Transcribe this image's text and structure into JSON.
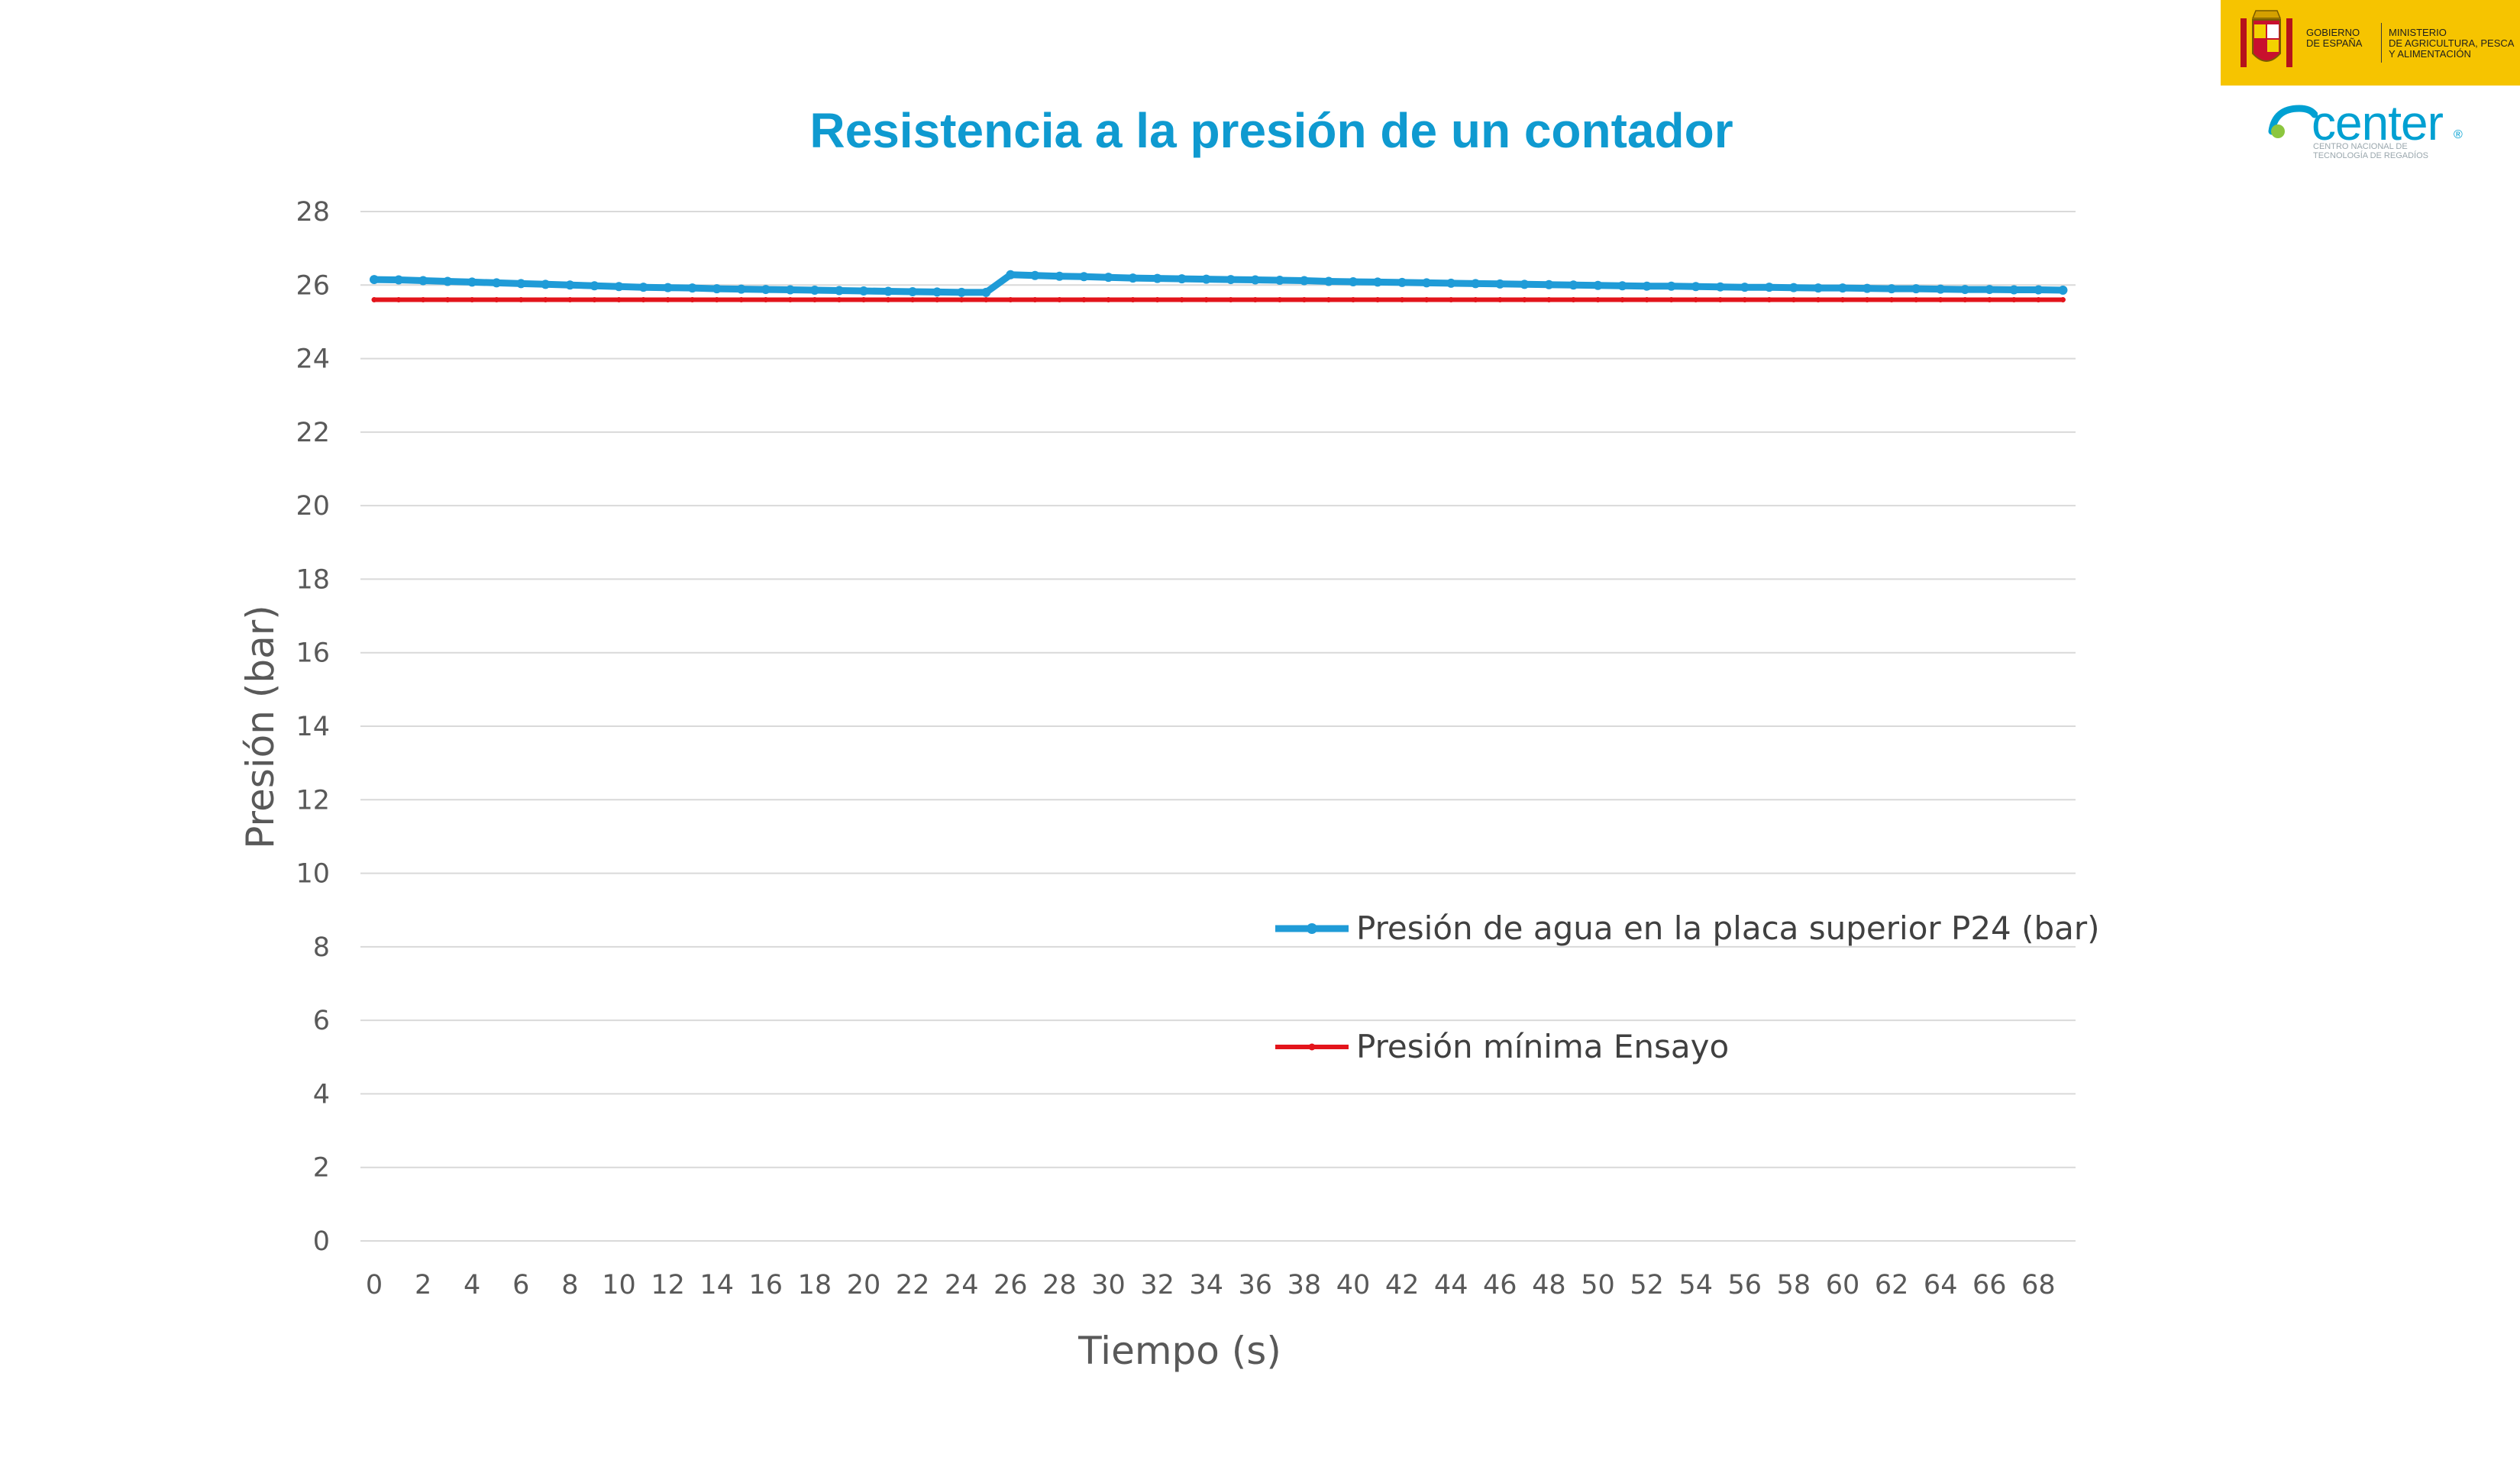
{
  "header": {
    "gov_line": "GOBIERNO\nDE ESPAÑA",
    "ministry_line": "MINISTERIO\nDE AGRICULTURA, PESCA\nY ALIMENTACIÓN",
    "center_word": "center",
    "center_reg": "®",
    "center_sub": "CENTRO NACIONAL DE\nTECNOLOGÍA DE REGADÍOS"
  },
  "colors": {
    "title": "#0f9ad0",
    "series_blue": "#1f9bd7",
    "series_red": "#e3141b",
    "grid": "#d9d9d9",
    "gov_yellow": "#f6c400"
  },
  "chart_data": {
    "type": "line",
    "title": "Resistencia a la presión de un contador",
    "xlabel": "Tiempo (s)",
    "ylabel": "Presión (bar)",
    "ylim": [
      0,
      28
    ],
    "yticks": [
      0,
      2,
      4,
      6,
      8,
      10,
      12,
      14,
      16,
      18,
      20,
      22,
      24,
      26,
      28
    ],
    "xlim": [
      0,
      69
    ],
    "xticks": [
      0,
      2,
      4,
      6,
      8,
      10,
      12,
      14,
      16,
      18,
      20,
      22,
      24,
      26,
      28,
      30,
      32,
      34,
      36,
      38,
      40,
      42,
      44,
      46,
      48,
      50,
      52,
      54,
      56,
      58,
      60,
      62,
      64,
      66,
      68
    ],
    "grid": "horizontal",
    "legend_position": "center-right",
    "x": [
      0,
      1,
      2,
      3,
      4,
      5,
      6,
      7,
      8,
      9,
      10,
      11,
      12,
      13,
      14,
      15,
      16,
      17,
      18,
      19,
      20,
      21,
      22,
      23,
      24,
      25,
      26,
      27,
      28,
      29,
      30,
      31,
      32,
      33,
      34,
      35,
      36,
      37,
      38,
      39,
      40,
      41,
      42,
      43,
      44,
      45,
      46,
      47,
      48,
      49,
      50,
      51,
      52,
      53,
      54,
      55,
      56,
      57,
      58,
      59,
      60,
      61,
      62,
      63,
      64,
      65,
      66,
      67,
      68,
      69
    ],
    "series": [
      {
        "name": "Presión de agua en la placa superior P24 (bar)",
        "color": "#1f9bd7",
        "values": [
          26.15,
          26.14,
          26.12,
          26.1,
          26.08,
          26.06,
          26.04,
          26.02,
          26.0,
          25.98,
          25.96,
          25.94,
          25.93,
          25.92,
          25.9,
          25.89,
          25.88,
          25.87,
          25.86,
          25.85,
          25.84,
          25.83,
          25.82,
          25.81,
          25.8,
          25.8,
          26.28,
          26.26,
          26.24,
          26.23,
          26.21,
          26.19,
          26.18,
          26.17,
          26.16,
          26.15,
          26.14,
          26.13,
          26.12,
          26.1,
          26.09,
          26.08,
          26.07,
          26.06,
          26.05,
          26.04,
          26.03,
          26.02,
          26.01,
          26.0,
          25.99,
          25.98,
          25.97,
          25.97,
          25.96,
          25.95,
          25.94,
          25.94,
          25.93,
          25.92,
          25.92,
          25.91,
          25.9,
          25.9,
          25.89,
          25.88,
          25.88,
          25.87,
          25.87,
          25.86
        ]
      },
      {
        "name": "Presión mínima Ensayo",
        "color": "#e3141b",
        "values": [
          25.6,
          25.6,
          25.6,
          25.6,
          25.6,
          25.6,
          25.6,
          25.6,
          25.6,
          25.6,
          25.6,
          25.6,
          25.6,
          25.6,
          25.6,
          25.6,
          25.6,
          25.6,
          25.6,
          25.6,
          25.6,
          25.6,
          25.6,
          25.6,
          25.6,
          25.6,
          25.6,
          25.6,
          25.6,
          25.6,
          25.6,
          25.6,
          25.6,
          25.6,
          25.6,
          25.6,
          25.6,
          25.6,
          25.6,
          25.6,
          25.6,
          25.6,
          25.6,
          25.6,
          25.6,
          25.6,
          25.6,
          25.6,
          25.6,
          25.6,
          25.6,
          25.6,
          25.6,
          25.6,
          25.6,
          25.6,
          25.6,
          25.6,
          25.6,
          25.6,
          25.6,
          25.6,
          25.6,
          25.6,
          25.6,
          25.6,
          25.6,
          25.6,
          25.6,
          25.6
        ]
      }
    ]
  }
}
